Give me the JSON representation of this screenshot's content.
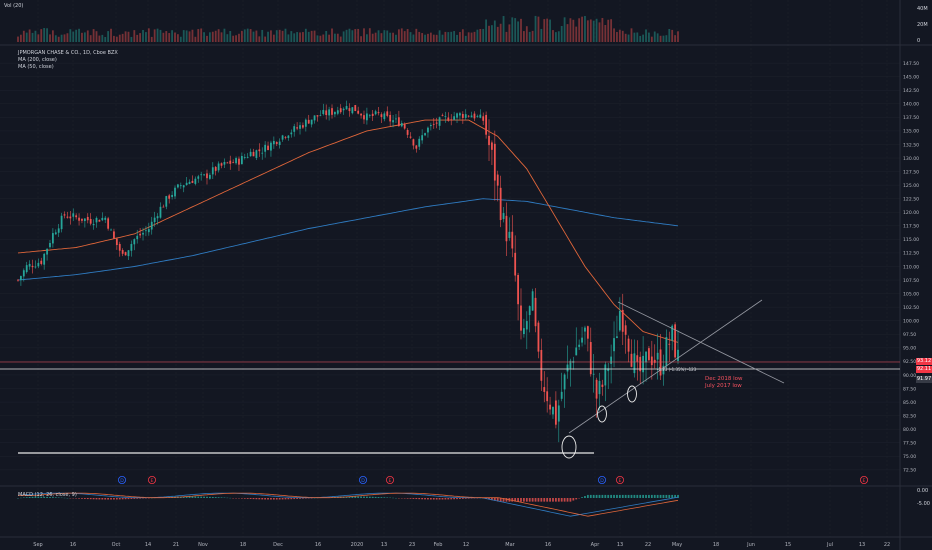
{
  "colors": {
    "background": "#131722",
    "grid": "#1e222d",
    "up": "#26a69a",
    "down": "#ef5350",
    "ma50": "#e0663a",
    "ma200": "#2f7bc1",
    "text": "#b2b5be",
    "white": "#e8e8e8",
    "event_blue": "#2962ff",
    "event_red": "#f23645"
  },
  "volume_pane": {
    "label": "Vol (20)",
    "axis_labels": [
      "40M",
      "20M",
      "0"
    ]
  },
  "legend": {
    "symbol": "JPMORGAN CHASE & CO., 1D, Cboe BZX",
    "ma200": "MA (200, close)",
    "ma50": "MA (50, close)"
  },
  "price_axis": {
    "ticks": [
      "147.50",
      "145.00",
      "142.50",
      "140.00",
      "137.50",
      "135.00",
      "132.50",
      "130.00",
      "127.50",
      "125.00",
      "122.50",
      "120.00",
      "117.50",
      "115.00",
      "112.50",
      "110.00",
      "107.50",
      "105.00",
      "102.50",
      "100.00",
      "97.50",
      "95.00",
      "92.50",
      "90.00",
      "87.50",
      "85.00",
      "82.50",
      "80.00",
      "77.50",
      "75.00",
      "72.50"
    ],
    "last_price_tags": [
      "93.12",
      "92.11",
      "91.97"
    ]
  },
  "annotations": {
    "fib_label": "-1.23 (-1.35%) -123",
    "level_note_1": "Dec 2018 low",
    "level_note_2": "July 2017 low"
  },
  "macd_pane": {
    "label": "MACD (12, 26, close, 9)",
    "axis_labels": [
      "0.00",
      "-5.00"
    ]
  },
  "time_axis": {
    "labels": [
      "Sep",
      "16",
      "Oct",
      "14",
      "21",
      "Nov",
      "18",
      "Dec",
      "16",
      "2020",
      "13",
      "23",
      "Feb",
      "12",
      "Mar",
      "16",
      "Apr",
      "13",
      "22",
      "May",
      "18",
      "Jun",
      "15",
      "Jul",
      "13",
      "22"
    ]
  },
  "event_markers": [
    "D",
    "E",
    "D",
    "E",
    "D",
    "E",
    "E"
  ],
  "chart_data": {
    "type": "candlestick",
    "title": "JPMORGAN CHASE & CO., 1D, Cboe BZX",
    "ylim": [
      71,
      149
    ],
    "y_ticks": [
      147.5,
      145,
      142.5,
      140,
      137.5,
      135,
      132.5,
      130,
      127.5,
      125,
      122.5,
      120,
      117.5,
      115,
      112.5,
      110,
      107.5,
      105,
      102.5,
      100,
      97.5,
      95,
      92.5,
      90,
      87.5,
      85,
      82.5,
      80,
      77.5,
      75,
      72.5
    ],
    "x_labels": [
      "Sep",
      "16",
      "Oct",
      "14",
      "21",
      "Nov",
      "18",
      "Dec",
      "16",
      "2020",
      "13",
      "23",
      "Feb",
      "12",
      "Mar",
      "16",
      "Apr",
      "13",
      "22",
      "May",
      "18",
      "Jun",
      "15",
      "Jul",
      "13",
      "22"
    ],
    "close_path": [
      [
        0,
        107.5
      ],
      [
        3,
        110
      ],
      [
        8,
        111
      ],
      [
        12,
        116
      ],
      [
        16,
        119.5
      ],
      [
        20,
        119
      ],
      [
        25,
        118.5
      ],
      [
        30,
        119
      ],
      [
        33,
        115
      ],
      [
        36,
        112
      ],
      [
        40,
        115
      ],
      [
        45,
        117
      ],
      [
        48,
        120
      ],
      [
        52,
        123
      ],
      [
        56,
        125
      ],
      [
        60,
        126
      ],
      [
        64,
        126.5
      ],
      [
        68,
        128
      ],
      [
        72,
        129
      ],
      [
        76,
        129.5
      ],
      [
        80,
        131
      ],
      [
        84,
        131.5
      ],
      [
        88,
        133
      ],
      [
        92,
        134.5
      ],
      [
        96,
        135.5
      ],
      [
        100,
        137
      ],
      [
        104,
        138
      ],
      [
        108,
        138.5
      ],
      [
        112,
        139.5
      ],
      [
        116,
        139
      ],
      [
        120,
        137.5
      ],
      [
        124,
        138
      ],
      [
        128,
        137
      ],
      [
        132,
        136.5
      ],
      [
        135,
        134
      ],
      [
        137,
        132
      ],
      [
        140,
        135
      ],
      [
        144,
        136.5
      ],
      [
        148,
        137.5
      ],
      [
        152,
        138
      ],
      [
        156,
        138
      ],
      [
        160,
        137
      ],
      [
        163,
        130
      ],
      [
        165,
        124
      ],
      [
        167,
        118
      ],
      [
        169,
        115
      ],
      [
        171,
        108
      ],
      [
        173,
        96
      ],
      [
        175,
        100
      ],
      [
        177,
        103
      ],
      [
        179,
        92
      ],
      [
        181,
        88
      ],
      [
        183,
        85
      ],
      [
        185,
        82
      ],
      [
        187,
        87
      ],
      [
        189,
        91
      ],
      [
        191,
        94
      ],
      [
        193,
        96
      ],
      [
        195,
        98
      ],
      [
        197,
        92
      ],
      [
        199,
        86
      ],
      [
        201,
        88
      ],
      [
        203,
        92
      ],
      [
        205,
        95
      ],
      [
        207,
        102
      ],
      [
        209,
        99
      ],
      [
        211,
        94
      ],
      [
        213,
        90
      ],
      [
        215,
        91
      ],
      [
        217,
        94
      ],
      [
        219,
        93
      ],
      [
        221,
        92
      ],
      [
        223,
        95
      ],
      [
        225,
        97
      ],
      [
        227,
        93
      ]
    ],
    "ma50_path": [
      [
        0,
        112.5
      ],
      [
        20,
        113.5
      ],
      [
        40,
        116
      ],
      [
        60,
        121
      ],
      [
        80,
        126
      ],
      [
        100,
        131
      ],
      [
        120,
        135
      ],
      [
        140,
        137
      ],
      [
        155,
        137
      ],
      [
        165,
        134
      ],
      [
        175,
        128
      ],
      [
        185,
        119
      ],
      [
        195,
        110
      ],
      [
        205,
        103
      ],
      [
        215,
        98
      ],
      [
        227,
        96
      ]
    ],
    "ma200_path": [
      [
        0,
        107.5
      ],
      [
        20,
        108.5
      ],
      [
        40,
        110
      ],
      [
        60,
        112
      ],
      [
        80,
        114.5
      ],
      [
        100,
        117
      ],
      [
        120,
        119
      ],
      [
        140,
        121
      ],
      [
        160,
        122.5
      ],
      [
        175,
        122
      ],
      [
        190,
        120.5
      ],
      [
        205,
        119
      ],
      [
        227,
        117.5
      ]
    ],
    "horizontal_levels": [
      77.5,
      91.97,
      93.12
    ],
    "macd_range": [
      -8,
      4
    ]
  }
}
